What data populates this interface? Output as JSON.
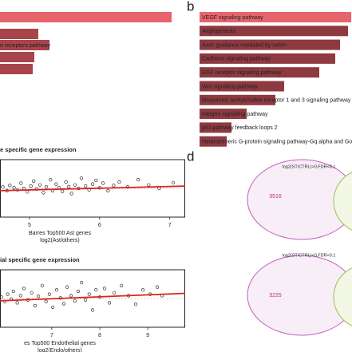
{
  "panel_a": {
    "bars": [
      {
        "label": null,
        "value": 215
      },
      {
        "label": null,
        "value": 48
      },
      {
        "label": "o receptors pathway",
        "value": 62
      },
      {
        "label": null,
        "value": 43
      },
      {
        "label": null,
        "value": 41
      }
    ]
  },
  "panel_b": {
    "letter": "b",
    "bars": [
      {
        "label": "VEGF signaling pathway",
        "value": 190
      },
      {
        "label": "Angiogenesis",
        "value": 186
      },
      {
        "label": "Axon guidance mediated by netrin",
        "value": 176
      },
      {
        "label": "Cadherin signaling pathway",
        "value": 170
      },
      {
        "label": "EGF receptor signaling pathway",
        "value": 150
      },
      {
        "label": "Wnt signaling pathway",
        "value": 106
      },
      {
        "label": "Muscarinic acetylcholine receptor 1 and 3 signaling pathway",
        "value": 95
      },
      {
        "label": "Integrin signalling pathway",
        "value": 59
      },
      {
        "label": "p53 pathway feedback loops 2",
        "value": 40
      },
      {
        "label": "Heterotrimeric G-protein signaling pathway-Gq alpha and Go",
        "value": 34
      }
    ]
  },
  "panel_c": {
    "plots": [
      {
        "title": "e specific gene expression",
        "xlabel": "Barres Top500 Ast genes",
        "xlabel2": "log2(Ast/others)",
        "xlim": [
          4.58,
          7.22
        ],
        "ylim": [
          -1,
          1
        ],
        "xticks": [
          5,
          6,
          7
        ],
        "trend": [
          -0.08,
          0.08
        ],
        "points": [
          [
            4.62,
            0.05
          ],
          [
            4.68,
            -0.08
          ],
          [
            4.72,
            0.1
          ],
          [
            4.78,
            0.02
          ],
          [
            4.83,
            -0.05
          ],
          [
            4.88,
            0.18
          ],
          [
            4.92,
            0.0
          ],
          [
            4.97,
            -0.12
          ],
          [
            5.02,
            0.08
          ],
          [
            5.06,
            0.25
          ],
          [
            5.1,
            -0.02
          ],
          [
            5.15,
            0.12
          ],
          [
            5.2,
            -0.15
          ],
          [
            5.24,
            0.05
          ],
          [
            5.3,
            0.3
          ],
          [
            5.33,
            -0.08
          ],
          [
            5.38,
            0.15
          ],
          [
            5.42,
            0.02
          ],
          [
            5.47,
            -0.1
          ],
          [
            5.52,
            0.22
          ],
          [
            5.56,
            0.06
          ],
          [
            5.6,
            -0.18
          ],
          [
            5.65,
            0.12
          ],
          [
            5.7,
            0.0
          ],
          [
            5.74,
            0.35
          ],
          [
            5.8,
            0.08
          ],
          [
            5.85,
            -0.05
          ],
          [
            5.9,
            0.15
          ],
          [
            5.95,
            0.28
          ],
          [
            6.0,
            0.02
          ],
          [
            6.05,
            0.18
          ],
          [
            6.12,
            -0.08
          ],
          [
            6.2,
            0.1
          ],
          [
            6.28,
            0.22
          ],
          [
            6.4,
            0.05
          ],
          [
            6.55,
            0.3
          ],
          [
            6.7,
            0.12
          ],
          [
            6.85,
            0.0
          ],
          [
            7.05,
            0.2
          ]
        ]
      },
      {
        "title": "ial specific gene expression",
        "xlabel": "es Top500 Endothelial genes",
        "xlabel2": "log2(Endo/others)",
        "xlim": [
          5.92,
          9.78
        ],
        "ylim": [
          -1,
          1
        ],
        "xticks": [
          7,
          8,
          9
        ],
        "trend": [
          -0.08,
          0.18
        ],
        "points": [
          [
            5.95,
            0.05
          ],
          [
            6.02,
            -0.1
          ],
          [
            6.08,
            0.15
          ],
          [
            6.15,
            -0.02
          ],
          [
            6.2,
            0.25
          ],
          [
            6.28,
            -0.15
          ],
          [
            6.35,
            0.1
          ],
          [
            6.42,
            0.35
          ],
          [
            6.5,
            -0.05
          ],
          [
            6.58,
            0.2
          ],
          [
            6.65,
            -0.25
          ],
          [
            6.72,
            0.08
          ],
          [
            6.8,
            0.45
          ],
          [
            6.88,
            -0.1
          ],
          [
            6.95,
            0.15
          ],
          [
            7.02,
            -0.3
          ],
          [
            7.1,
            0.3
          ],
          [
            7.18,
            0.02
          ],
          [
            7.25,
            -0.18
          ],
          [
            7.32,
            0.4
          ],
          [
            7.4,
            0.1
          ],
          [
            7.48,
            -0.08
          ],
          [
            7.55,
            0.25
          ],
          [
            7.62,
            0.55
          ],
          [
            7.7,
            -0.05
          ],
          [
            7.78,
            0.15
          ],
          [
            7.85,
            -0.4
          ],
          [
            7.92,
            0.3
          ],
          [
            8.0,
            0.05
          ],
          [
            8.1,
            0.35
          ],
          [
            8.2,
            -0.15
          ],
          [
            8.3,
            0.2
          ],
          [
            8.45,
            0.45
          ],
          [
            8.6,
            0.1
          ],
          [
            8.75,
            -0.2
          ],
          [
            8.9,
            0.3
          ],
          [
            9.05,
            0.15
          ],
          [
            9.2,
            0.4
          ],
          [
            9.3,
            0.1
          ]
        ]
      }
    ]
  },
  "panel_d": {
    "letter": "d",
    "venns": [
      {
        "title": "log2(ST/CTRL)>0,FDR<0.1",
        "count": "3516"
      },
      {
        "title": "log2(ST/CTRL)<0,FDR<0.1",
        "count": "3225"
      }
    ]
  }
}
